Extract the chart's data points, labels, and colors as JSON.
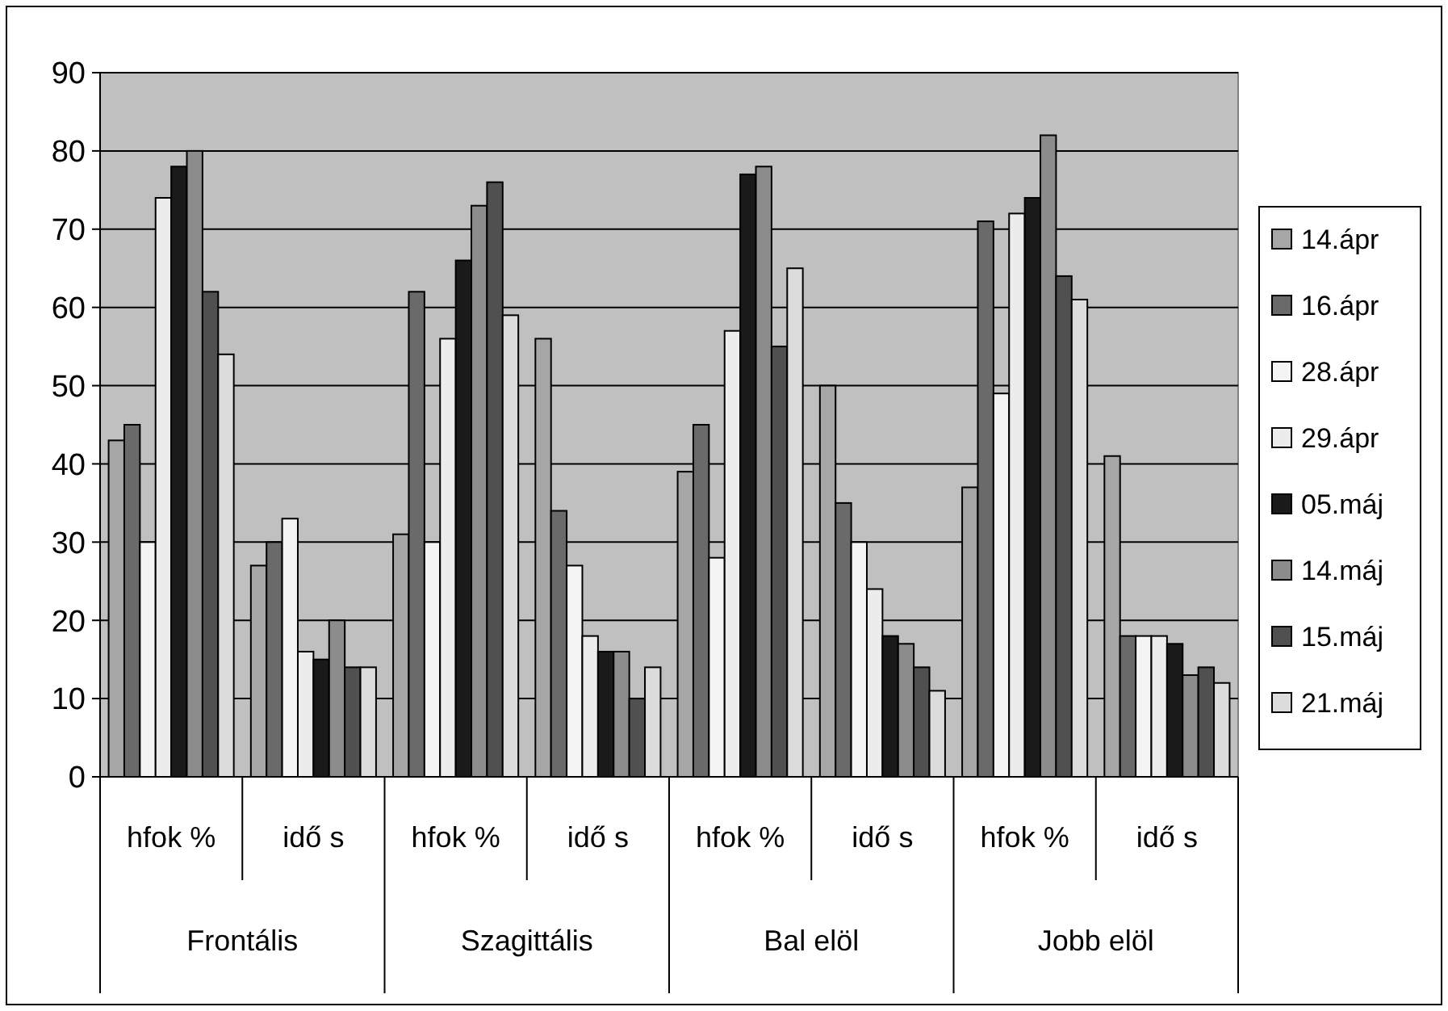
{
  "chart_data": {
    "type": "bar",
    "categories": [
      "hfok %",
      "idő s",
      "hfok %",
      "idő s",
      "hfok %",
      "idő s",
      "hfok %",
      "idő s"
    ],
    "annotations": [
      "Frontális",
      "Szagittális",
      "Bal elöl",
      "Jobb elöl"
    ],
    "series": [
      {
        "name": "14.ápr",
        "color": "#a6a6a6",
        "values": [
          43,
          27,
          31,
          56,
          39,
          50,
          37,
          41
        ]
      },
      {
        "name": "16.ápr",
        "color": "#6a6a6a",
        "values": [
          45,
          30,
          62,
          34,
          45,
          35,
          71,
          18
        ]
      },
      {
        "name": "28.ápr",
        "color": "#f4f4f4",
        "values": [
          30,
          33,
          30,
          27,
          28,
          30,
          49,
          18
        ]
      },
      {
        "name": "29.ápr",
        "color": "#ececec",
        "values": [
          74,
          16,
          56,
          18,
          57,
          24,
          72,
          18
        ]
      },
      {
        "name": "05.máj",
        "color": "#1a1a1a",
        "values": [
          78,
          15,
          66,
          16,
          77,
          18,
          74,
          17
        ]
      },
      {
        "name": "14.máj",
        "color": "#8c8c8c",
        "values": [
          80,
          20,
          73,
          16,
          78,
          17,
          82,
          13
        ]
      },
      {
        "name": "15.máj",
        "color": "#505050",
        "values": [
          62,
          14,
          76,
          10,
          55,
          14,
          64,
          14
        ]
      },
      {
        "name": "21.máj",
        "color": "#dcdcdc",
        "values": [
          54,
          14,
          59,
          14,
          65,
          11,
          61,
          12
        ]
      }
    ],
    "ylim": [
      0,
      90
    ],
    "yticks": [
      0,
      10,
      20,
      30,
      40,
      50,
      60,
      70,
      80,
      90
    ],
    "grid": "y",
    "legend": "right"
  }
}
